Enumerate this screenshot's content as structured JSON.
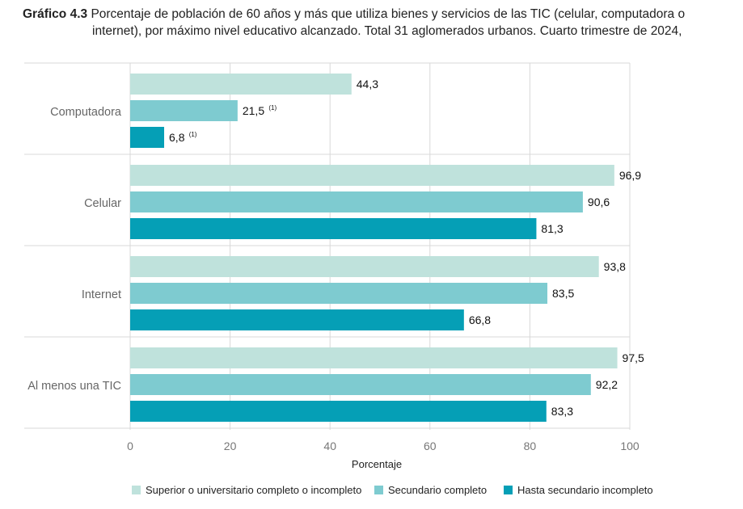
{
  "title": {
    "number": "Gráfico 4.3",
    "line1": "Porcentaje de población de 60 años y más que utiliza bienes y servicios de las TIC (celular, computadora o",
    "line2": "internet), por máximo nivel educativo alcanzado. Total 31 aglomerados urbanos. Cuarto trimestre de 2024,"
  },
  "colors": {
    "superior": "#bfe2dc",
    "secundario": "#7ecbd0",
    "hasta": "#059fb6",
    "grid": "#d8d8d8",
    "axis_text": "#777777",
    "category_text": "#666666"
  },
  "chart_data": {
    "type": "bar",
    "orientation": "horizontal",
    "categories": [
      "Computadora",
      "Celular",
      "Internet",
      "Al menos una TIC"
    ],
    "series": [
      {
        "name": "Superior o universitario completo o incompleto",
        "key": "superior",
        "values": [
          44.3,
          96.9,
          93.8,
          97.5
        ],
        "labels": [
          "44,3",
          "96,9",
          "93,8",
          "97,5"
        ],
        "notes": [
          "",
          "",
          "",
          ""
        ]
      },
      {
        "name": "Secundario completo",
        "key": "secundario",
        "values": [
          21.5,
          90.6,
          83.5,
          92.2
        ],
        "labels": [
          "21,5",
          "90,6",
          "83,5",
          "92,2"
        ],
        "notes": [
          "(1)",
          "",
          "",
          ""
        ]
      },
      {
        "name": "Hasta secundario incompleto",
        "key": "hasta",
        "values": [
          6.8,
          81.3,
          66.8,
          83.3
        ],
        "labels": [
          "6,8",
          "81,3",
          "66,8",
          "83,3"
        ],
        "notes": [
          "(1)",
          "",
          "",
          ""
        ]
      }
    ],
    "xlabel": "Porcentaje",
    "xlim": [
      0,
      100
    ],
    "xticks": [
      0,
      20,
      40,
      60,
      80,
      100
    ],
    "xtick_labels": [
      "0",
      "20",
      "40",
      "60",
      "80",
      "100"
    ],
    "grid": true,
    "legend_position": "bottom"
  }
}
